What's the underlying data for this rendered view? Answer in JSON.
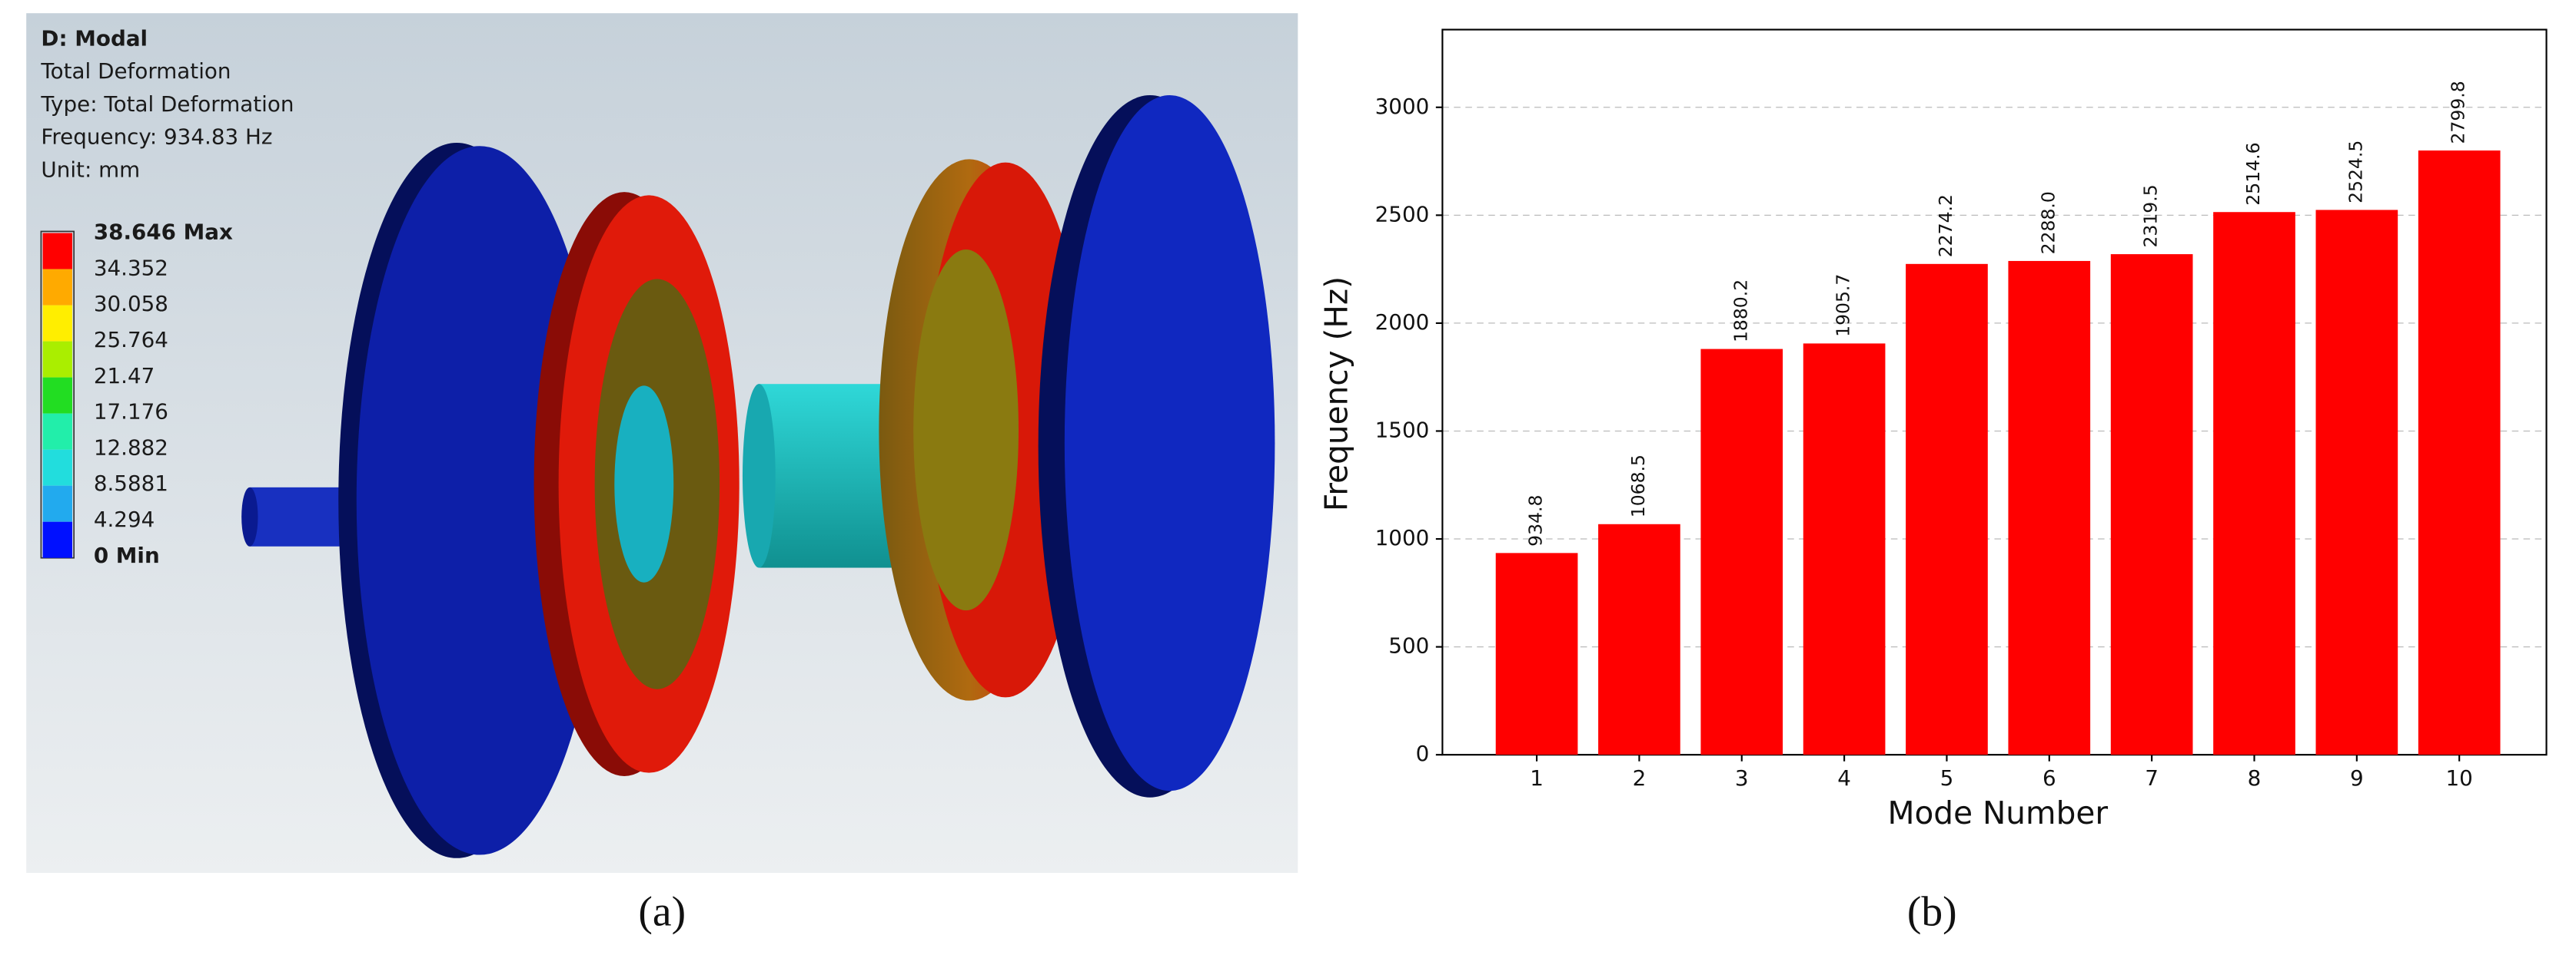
{
  "panel_a": {
    "label": "(a)",
    "title": "D: Modal",
    "lines": [
      "Total Deformation",
      "Type: Total Deformation",
      "Frequency: 934.83 Hz",
      "Unit: mm"
    ],
    "legend": [
      "38.646 Max",
      "34.352",
      "30.058",
      "25.764",
      "21.47",
      "17.176",
      "12.882",
      "8.5881",
      "4.294",
      "0 Min"
    ]
  },
  "chart_data": {
    "type": "bar",
    "panel_label": "(b)",
    "x_label": "Mode Number",
    "y_label": "Frequency (Hz)",
    "categories": [
      "1",
      "2",
      "3",
      "4",
      "5",
      "6",
      "7",
      "8",
      "9",
      "10"
    ],
    "values": [
      934.8,
      1068.5,
      1880.2,
      1905.7,
      2274.2,
      2288.0,
      2319.5,
      2514.6,
      2524.5,
      2799.8
    ],
    "value_labels": [
      "934.8",
      "1068.5",
      "1880.2",
      "1905.7",
      "2274.2",
      "2288.0",
      "2319.5",
      "2514.6",
      "2524.5",
      "2799.8"
    ],
    "color": "#ff0000",
    "ylim": [
      0,
      3360
    ],
    "yticks": [
      0,
      500,
      1000,
      1500,
      2000,
      2500,
      3000
    ],
    "grid": true
  }
}
